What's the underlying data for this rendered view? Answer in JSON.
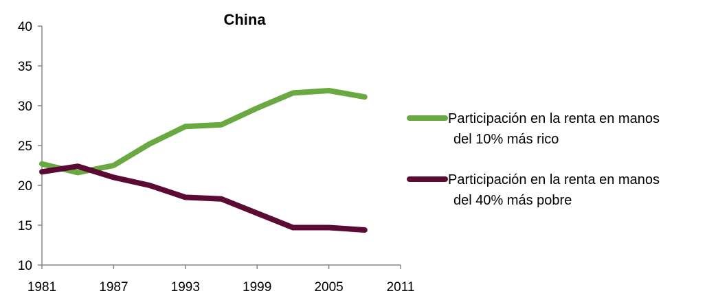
{
  "chart_data": {
    "type": "line",
    "title": "China",
    "xlabel": "",
    "ylabel": "",
    "x": [
      1981,
      1984,
      1987,
      1990,
      1993,
      1996,
      1999,
      2002,
      2005,
      2008
    ],
    "series": [
      {
        "name": "Participación en la renta en manos del 10% más rico",
        "name_lines": [
          "Participación en la renta en manos",
          "del 10% más rico"
        ],
        "color": "#6aa842",
        "values": [
          22.7,
          21.6,
          22.5,
          25.2,
          27.4,
          27.6,
          29.7,
          31.6,
          31.9,
          31.1
        ]
      },
      {
        "name": "Participación en la renta en manos del 40% más pobre",
        "name_lines": [
          "Participación en la renta en manos",
          "del 40% más pobre"
        ],
        "color": "#5b0a33",
        "values": [
          21.7,
          22.4,
          21.0,
          20.0,
          18.5,
          18.3,
          16.5,
          14.7,
          14.7,
          14.4
        ]
      }
    ],
    "xlim": [
      1981,
      2011
    ],
    "ylim": [
      10,
      40
    ],
    "x_ticks": [
      1981,
      1987,
      1993,
      1999,
      2005,
      2011
    ],
    "y_ticks": [
      10,
      15,
      20,
      25,
      30,
      35,
      40
    ],
    "grid": false,
    "legend_position": "right"
  }
}
